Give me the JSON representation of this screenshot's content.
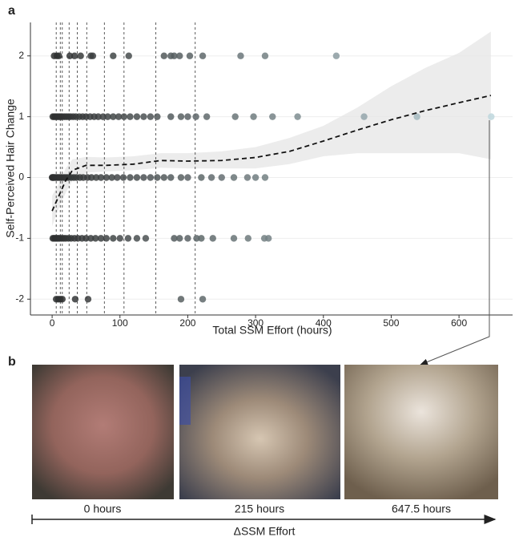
{
  "chart_data": {
    "type": "scatter",
    "panel_label": "a",
    "xlabel": "Total SSM Effort (hours)",
    "ylabel": "Self-Perceived Hair Change",
    "xlim": [
      -32,
      679
    ],
    "ylim": [
      -2.26,
      2.55
    ],
    "xticks": [
      0,
      100,
      200,
      300,
      400,
      500,
      600
    ],
    "yticks": [
      -2,
      -1,
      0,
      1,
      2
    ],
    "grid": true,
    "colors": [
      "#262626",
      "#c5dfe6"
    ],
    "vlines": [
      6,
      12,
      15,
      25,
      37,
      51,
      77,
      106,
      153,
      211
    ],
    "series": [
      {
        "y": 2,
        "x": [
          3,
          7,
          10,
          26,
          33,
          42,
          57,
          60,
          90,
          113,
          165,
          175,
          180,
          188,
          203,
          222,
          278,
          314,
          419
        ]
      },
      {
        "y": 1,
        "x": [
          1,
          3,
          5,
          7,
          9,
          11,
          13,
          15,
          18,
          21,
          24,
          27,
          31,
          35,
          40,
          45,
          50,
          56,
          62,
          68,
          75,
          82,
          90,
          98,
          106,
          115,
          125,
          135,
          145,
          155,
          175,
          190,
          200,
          212,
          228,
          270,
          297,
          325,
          362,
          460,
          538,
          647.5
        ]
      },
      {
        "y": 0,
        "x": [
          0,
          1,
          2,
          3,
          5,
          7,
          9,
          11,
          13,
          15,
          18,
          21,
          24,
          28,
          32,
          36,
          41,
          46,
          52,
          58,
          65,
          72,
          80,
          88,
          96,
          105,
          115,
          125,
          135,
          145,
          155,
          165,
          175,
          190,
          200,
          220,
          235,
          250,
          268,
          288,
          300,
          314
        ]
      },
      {
        "y": -1,
        "x": [
          1,
          3,
          5,
          7,
          9,
          11,
          14,
          17,
          20,
          24,
          28,
          33,
          38,
          44,
          50,
          57,
          64,
          72,
          80,
          90,
          100,
          112,
          125,
          138,
          180,
          188,
          200,
          213,
          220,
          237,
          268,
          289,
          313,
          319
        ]
      },
      {
        "y": -2,
        "x": [
          6,
          9,
          12,
          15,
          34,
          53,
          190,
          222
        ]
      }
    ],
    "trend": {
      "x": [
        0,
        10,
        20,
        30,
        50,
        80,
        120,
        160,
        200,
        250,
        300,
        350,
        400,
        450,
        500,
        550,
        600,
        647
      ],
      "y": [
        -0.55,
        -0.3,
        -0.05,
        0.12,
        0.2,
        0.2,
        0.22,
        0.28,
        0.27,
        0.28,
        0.33,
        0.43,
        0.6,
        0.78,
        0.95,
        1.1,
        1.23,
        1.35
      ],
      "lower": [
        -0.8,
        -0.5,
        -0.25,
        -0.05,
        0.08,
        0.1,
        0.12,
        0.16,
        0.15,
        0.15,
        0.15,
        0.22,
        0.35,
        0.4,
        0.4,
        0.4,
        0.4,
        0.3
      ],
      "upper": [
        -0.3,
        -0.1,
        0.15,
        0.3,
        0.34,
        0.33,
        0.35,
        0.4,
        0.4,
        0.43,
        0.5,
        0.65,
        0.85,
        1.15,
        1.5,
        1.8,
        2.05,
        2.4
      ]
    }
  },
  "panel_b": {
    "label": "b",
    "photos": [
      {
        "caption": "0 hours"
      },
      {
        "caption": "215 hours"
      },
      {
        "caption": "647.5 hours"
      }
    ],
    "axis_label": "ΔSSM Effort"
  }
}
